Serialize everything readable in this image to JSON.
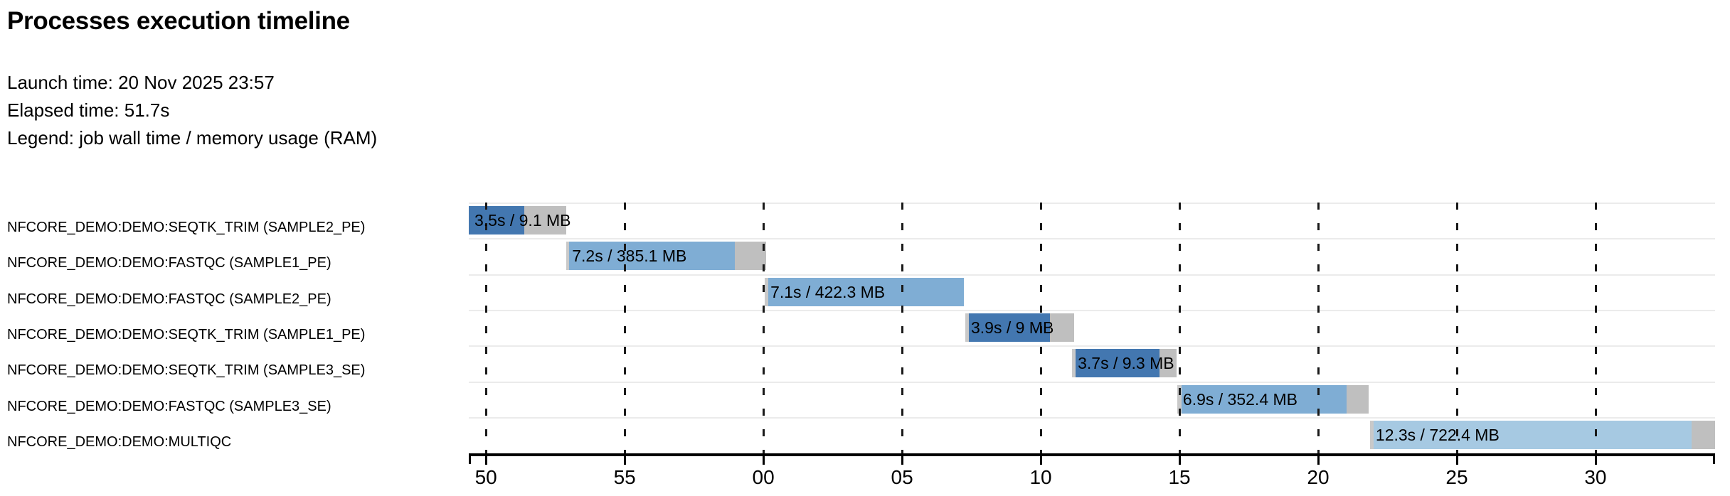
{
  "header": {
    "title": "Processes execution timeline",
    "launch_time": "Launch time: 20 Nov 2025 23:57",
    "elapsed_time": "Elapsed time: 51.7s",
    "legend": "Legend: job wall time / memory usage (RAM)"
  },
  "colors": {
    "seqtk_trim": "#4377b0",
    "fastqc": "#7fadd4",
    "multiqc": "#a6c9e2",
    "tail_gray": "#bfbfbf",
    "pre_gray": "#c9c9c9",
    "grid_line": "#191919",
    "row_line": "#ebebeb",
    "axis": "#000000",
    "text": "#000000"
  },
  "chart_data": {
    "type": "timeline-gantt",
    "title": "Processes execution timeline",
    "time_unit": "seconds after 23:57:00 (clock seconds shown on axis)",
    "legend": "job wall time / memory usage (RAM)",
    "axis": {
      "min_s": 49.38,
      "max_s": 94.31,
      "ticks": [
        {
          "t": 50,
          "label": "50"
        },
        {
          "t": 55,
          "label": "55"
        },
        {
          "t": 60,
          "label": "00"
        },
        {
          "t": 65,
          "label": "05"
        },
        {
          "t": 70,
          "label": "10"
        },
        {
          "t": 75,
          "label": "15"
        },
        {
          "t": 80,
          "label": "20"
        },
        {
          "t": 85,
          "label": "25"
        },
        {
          "t": 90,
          "label": "30"
        }
      ]
    },
    "tasks": [
      {
        "label": "NFCORE_DEMO:DEMO:SEQTK_TRIM (SAMPLE2_PE)",
        "process": "SEQTK_TRIM",
        "bar_label": "3.5s / 9.1 MB",
        "wall_time_s": 3.5,
        "memory": "9.1 MB",
        "submit_s": 49.38,
        "start_s": 49.38,
        "run_end_s": 51.38,
        "complete_s": 52.9,
        "color": "#4377b0"
      },
      {
        "label": "NFCORE_DEMO:DEMO:FASTQC (SAMPLE1_PE)",
        "process": "FASTQC",
        "bar_label": "7.2s / 385.1 MB",
        "wall_time_s": 7.2,
        "memory": "385.1 MB",
        "submit_s": 52.9,
        "start_s": 53.0,
        "run_end_s": 58.97,
        "complete_s": 60.1,
        "color": "#7fadd4"
      },
      {
        "label": "NFCORE_DEMO:DEMO:FASTQC (SAMPLE2_PE)",
        "process": "FASTQC",
        "bar_label": "7.1s / 422.3 MB",
        "wall_time_s": 7.1,
        "memory": "422.3 MB",
        "submit_s": 60.05,
        "start_s": 60.18,
        "run_end_s": 67.23,
        "complete_s": 67.23,
        "color": "#7fadd4"
      },
      {
        "label": "NFCORE_DEMO:DEMO:SEQTK_TRIM (SAMPLE1_PE)",
        "process": "SEQTK_TRIM",
        "bar_label": "3.9s / 9 MB",
        "wall_time_s": 3.9,
        "memory": "9 MB",
        "submit_s": 67.28,
        "start_s": 67.41,
        "run_end_s": 70.33,
        "complete_s": 71.21,
        "color": "#4377b0"
      },
      {
        "label": "NFCORE_DEMO:DEMO:SEQTK_TRIM (SAMPLE3_SE)",
        "process": "SEQTK_TRIM",
        "bar_label": "3.7s / 9.3 MB",
        "wall_time_s": 3.7,
        "memory": "9.3 MB",
        "submit_s": 71.13,
        "start_s": 71.26,
        "run_end_s": 74.28,
        "complete_s": 74.9,
        "color": "#4377b0"
      },
      {
        "label": "NFCORE_DEMO:DEMO:FASTQC (SAMPLE3_SE)",
        "process": "FASTQC",
        "bar_label": "6.9s / 352.4 MB",
        "wall_time_s": 6.9,
        "memory": "352.4 MB",
        "submit_s": 74.92,
        "start_s": 75.08,
        "run_end_s": 81.03,
        "complete_s": 81.82,
        "color": "#7fadd4"
      },
      {
        "label": "NFCORE_DEMO:DEMO:MULTIQC",
        "process": "MULTIQC",
        "bar_label": "12.3s / 722.4 MB",
        "wall_time_s": 12.3,
        "memory": "722.4 MB",
        "submit_s": 81.87,
        "start_s": 82.0,
        "run_end_s": 93.46,
        "complete_s": 94.31,
        "color": "#a6c9e2"
      }
    ]
  }
}
